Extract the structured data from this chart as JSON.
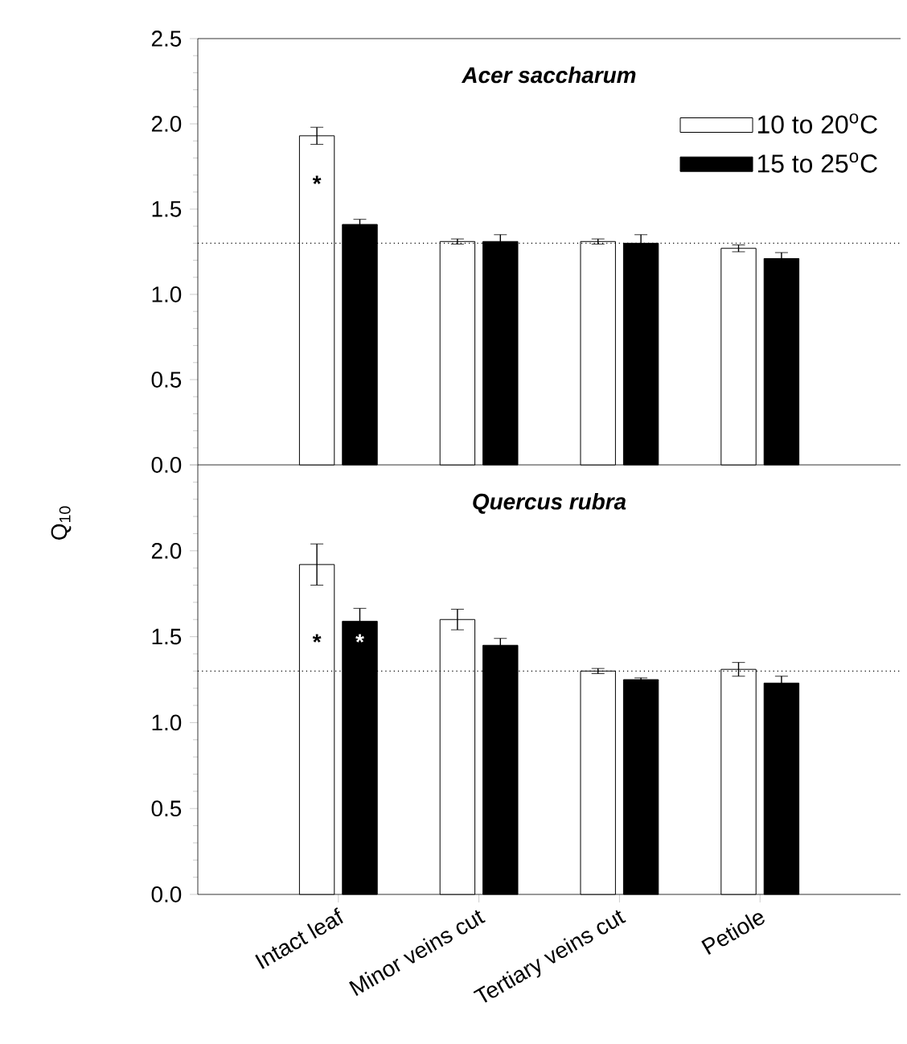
{
  "chart_data": [
    {
      "type": "bar",
      "title": "Acer saccharum",
      "ylabel": "Q$_{10}$",
      "categories": [
        "Intact leaf",
        "Minor veins cut",
        "Tertiary veins cut",
        "Petiole"
      ],
      "series": [
        {
          "name": "10 to 20$^{o}$C",
          "color": "#ffffff",
          "values": [
            1.93,
            1.31,
            1.31,
            1.27
          ],
          "errors": [
            0.05,
            0.015,
            0.015,
            0.02
          ]
        },
        {
          "name": "15 to 25$^{o}$C",
          "color": "#000000",
          "values": [
            1.41,
            1.31,
            1.3,
            1.21
          ],
          "errors": [
            0.03,
            0.04,
            0.05,
            0.035
          ]
        }
      ],
      "ylim": [
        0,
        2.5
      ],
      "yticks": [
        {
          "value": 0,
          "label": "0.0"
        },
        {
          "value": 0.5,
          "label": "0.5"
        },
        {
          "value": 1,
          "label": "1.0"
        },
        {
          "value": 1.5,
          "label": "1.5"
        },
        {
          "value": 2,
          "label": "2.0"
        },
        {
          "value": 2.5,
          "label": "2.5"
        }
      ],
      "tick_labels": "y",
      "legend": "top right",
      "ref_lines": [
        {
          "axis": "y",
          "value": 1.3,
          "line_style": "dotted"
        }
      ],
      "annotations": [
        {
          "text": "*",
          "x": "Intact leaf",
          "y": 1.65
        }
      ]
    },
    {
      "type": "bar",
      "title": "Quercus rubra",
      "categories": [
        "Intact leaf",
        "Minor veins cut",
        "Tertiary veins cut",
        "Petiole"
      ],
      "series": [
        {
          "color": "#ffffff",
          "values": [
            1.92,
            1.6,
            1.3,
            1.31
          ],
          "errors": [
            0.12,
            0.06,
            0.015,
            0.04
          ]
        },
        {
          "color": "#000000",
          "values": [
            1.59,
            1.45,
            1.25,
            1.23
          ],
          "errors": [
            0.075,
            0.04,
            0.01,
            0.04
          ]
        }
      ],
      "ylim": [
        0,
        2.5
      ],
      "yticks": [
        {
          "value": 0,
          "label": "0.0"
        },
        {
          "value": 0.5,
          "label": "0.5"
        },
        {
          "value": 1,
          "label": "1.0"
        },
        {
          "value": 1.5,
          "label": "1.5"
        },
        {
          "value": 2,
          "label": "2.0"
        },
        {
          "value": 2.5,
          "label": null
        }
      ],
      "ref_lines": [
        {
          "axis": "y",
          "value": 1.3,
          "line_style": "dotted"
        }
      ],
      "annotations": [
        {
          "text": "*",
          "x": "Intact leaf",
          "y": 1.47
        },
        {
          "text": "*",
          "x": "Intact leaf",
          "y": 1.47
        }
      ]
    }
  ]
}
